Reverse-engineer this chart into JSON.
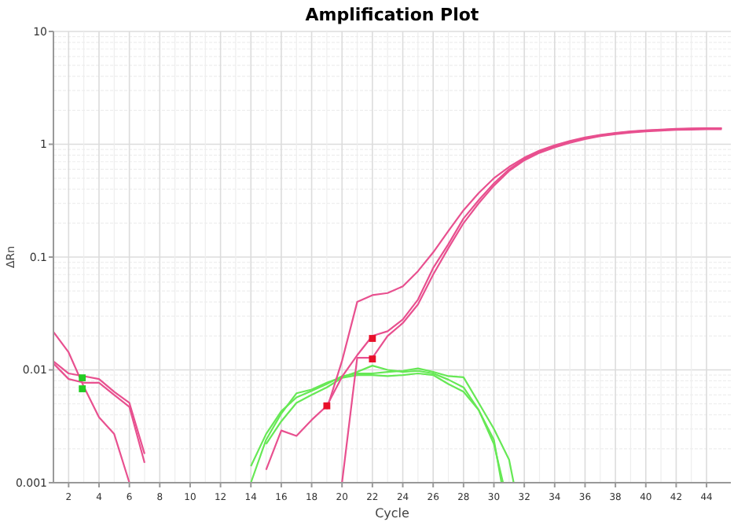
{
  "chart_data": {
    "type": "line",
    "title": "Amplification Plot",
    "xlabel": "Cycle",
    "ylabel": "ΔRn",
    "log": "y",
    "grid": true,
    "xlim": [
      1,
      45.6
    ],
    "xticks": [
      2,
      4,
      6,
      8,
      10,
      12,
      14,
      16,
      18,
      20,
      22,
      24,
      26,
      28,
      30,
      32,
      34,
      36,
      38,
      40,
      42,
      44
    ],
    "ylim": [
      0.001,
      10
    ],
    "yticks": [
      0.001,
      0.01,
      0.1,
      1,
      10
    ],
    "series": [
      {
        "color": "#e8508f",
        "x": [
          1,
          2,
          3,
          4,
          5,
          6
        ],
        "values": [
          0.0217,
          0.0143,
          0.0071,
          0.0038,
          0.0027,
          0.001
        ]
      },
      {
        "color": "#e8508f",
        "x": [
          1,
          2,
          3,
          4,
          5,
          6,
          7
        ],
        "values": [
          0.0119,
          0.0093,
          0.0088,
          0.0083,
          0.0064,
          0.0051,
          0.0018
        ]
      },
      {
        "color": "#e8508f",
        "x": [
          1,
          2,
          3,
          4,
          5,
          6,
          7
        ],
        "values": [
          0.0114,
          0.0083,
          0.0077,
          0.0077,
          0.006,
          0.0047,
          0.0015
        ]
      },
      {
        "color": "#66e855",
        "x": [
          14,
          15,
          16,
          17,
          18,
          19,
          20,
          21,
          22,
          23,
          24,
          25,
          26,
          27,
          28,
          29,
          30,
          30.5
        ],
        "values": [
          0.001,
          0.0024,
          0.0041,
          0.0062,
          0.0067,
          0.0077,
          0.0086,
          0.0096,
          0.0109,
          0.01,
          0.0096,
          0.0098,
          0.0093,
          0.0082,
          0.007,
          0.0044,
          0.0024,
          0.001
        ]
      },
      {
        "color": "#66e855",
        "x": [
          14,
          15,
          16,
          17,
          18,
          19,
          20,
          21,
          22,
          23,
          24,
          25,
          26,
          27,
          28,
          29,
          30,
          31,
          31.3
        ],
        "values": [
          0.0014,
          0.0027,
          0.0043,
          0.0057,
          0.0065,
          0.0075,
          0.0088,
          0.0093,
          0.0093,
          0.0096,
          0.0098,
          0.0103,
          0.0096,
          0.0088,
          0.0086,
          0.0051,
          0.003,
          0.0016,
          0.001
        ]
      },
      {
        "color": "#66e855",
        "x": [
          15,
          16,
          17,
          18,
          19,
          20,
          21,
          22,
          23,
          24,
          25,
          26,
          27,
          28,
          29,
          30,
          30.6
        ],
        "values": [
          0.0022,
          0.0035,
          0.0051,
          0.006,
          0.007,
          0.0085,
          0.009,
          0.009,
          0.0088,
          0.009,
          0.0093,
          0.009,
          0.0075,
          0.0064,
          0.0044,
          0.0022,
          0.001
        ]
      },
      {
        "color": "#e8508f",
        "x": [
          15,
          16,
          17,
          18,
          19,
          20,
          21,
          22,
          23,
          24,
          25,
          26,
          27,
          28,
          29,
          30,
          31,
          32,
          33,
          34,
          35,
          36,
          37,
          38,
          39,
          40,
          41,
          42,
          43,
          44,
          45
        ],
        "values": [
          0.0013,
          0.0029,
          0.0026,
          0.0036,
          0.0048,
          0.0087,
          0.0135,
          0.02,
          0.022,
          0.028,
          0.042,
          0.08,
          0.13,
          0.22,
          0.32,
          0.45,
          0.6,
          0.74,
          0.86,
          0.96,
          1.05,
          1.13,
          1.2,
          1.25,
          1.29,
          1.32,
          1.34,
          1.36,
          1.37,
          1.38,
          1.38
        ]
      },
      {
        "color": "#e8508f",
        "x": [
          20,
          21,
          22,
          23,
          24,
          25,
          26,
          27,
          28,
          29,
          30,
          31,
          32,
          33,
          34,
          35,
          36,
          37,
          38,
          39,
          40,
          41,
          42,
          43,
          44,
          45
        ],
        "values": [
          0.001,
          0.0128,
          0.0128,
          0.02,
          0.026,
          0.038,
          0.07,
          0.12,
          0.2,
          0.3,
          0.43,
          0.58,
          0.72,
          0.84,
          0.94,
          1.03,
          1.11,
          1.18,
          1.23,
          1.27,
          1.3,
          1.32,
          1.34,
          1.35,
          1.36,
          1.36
        ]
      },
      {
        "color": "#e8508f",
        "x": [
          19,
          20,
          21,
          22,
          23,
          24,
          25,
          26,
          27,
          28,
          29,
          30,
          31,
          32,
          33,
          34,
          35,
          36,
          37,
          38,
          39,
          40,
          41,
          42,
          43,
          44,
          45
        ],
        "values": [
          0.0045,
          0.012,
          0.04,
          0.046,
          0.048,
          0.055,
          0.075,
          0.11,
          0.17,
          0.26,
          0.37,
          0.5,
          0.63,
          0.76,
          0.88,
          0.98,
          1.07,
          1.15,
          1.21,
          1.26,
          1.3,
          1.33,
          1.35,
          1.37,
          1.38,
          1.39,
          1.39
        ]
      },
      {
        "type": "scatter",
        "marker": "square",
        "color": "#e8102a",
        "x": [
          19,
          22,
          22
        ],
        "values": [
          0.0048,
          0.019,
          0.0125
        ]
      },
      {
        "type": "scatter",
        "marker": "square",
        "color": "#22cc22",
        "x": [
          2.9,
          2.9
        ],
        "values": [
          0.0085,
          0.0068
        ]
      }
    ]
  }
}
